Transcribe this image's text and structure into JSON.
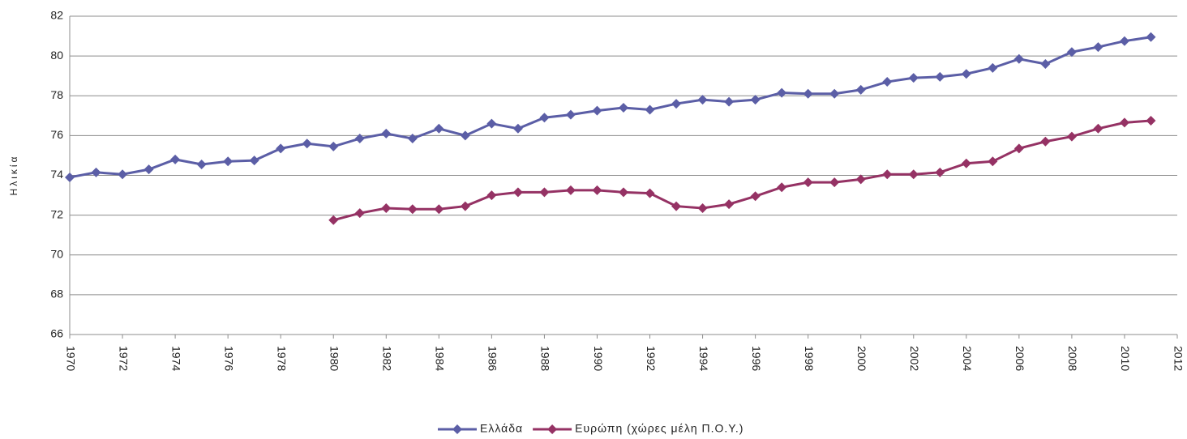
{
  "chart_data": {
    "type": "line",
    "y_label": "Ηλικία",
    "x": [
      1970,
      1971,
      1972,
      1973,
      1974,
      1975,
      1976,
      1977,
      1978,
      1979,
      1980,
      1981,
      1982,
      1983,
      1984,
      1985,
      1986,
      1987,
      1988,
      1989,
      1990,
      1991,
      1992,
      1993,
      1994,
      1995,
      1996,
      1997,
      1998,
      1999,
      2000,
      2001,
      2002,
      2003,
      2004,
      2005,
      2006,
      2007,
      2008,
      2009,
      2010,
      2011
    ],
    "series": [
      {
        "name": "Ελλάδα",
        "color": "#5b5ea6",
        "values": [
          73.9,
          74.15,
          74.05,
          74.3,
          74.8,
          74.55,
          74.7,
          74.75,
          75.35,
          75.6,
          75.45,
          75.85,
          76.1,
          75.85,
          76.35,
          76.0,
          76.6,
          76.35,
          76.9,
          77.05,
          77.25,
          77.4,
          77.3,
          77.6,
          77.8,
          77.7,
          77.8,
          78.15,
          78.1,
          78.1,
          78.3,
          78.7,
          78.9,
          78.95,
          79.1,
          79.4,
          79.85,
          79.6,
          80.2,
          80.45,
          80.75,
          80.95
        ]
      },
      {
        "name": "Ευρώπη (χώρες μέλη Π.Ο.Υ.)",
        "color": "#953264",
        "values": [
          null,
          null,
          null,
          null,
          null,
          null,
          null,
          null,
          null,
          null,
          71.75,
          72.1,
          72.35,
          72.3,
          72.3,
          72.45,
          73.0,
          73.15,
          73.15,
          73.25,
          73.25,
          73.15,
          73.1,
          72.45,
          72.35,
          72.55,
          72.95,
          73.4,
          73.65,
          73.65,
          73.8,
          74.05,
          74.05,
          74.15,
          74.6,
          74.7,
          75.35,
          75.7,
          75.95,
          76.35,
          76.65,
          76.75
        ]
      }
    ],
    "xlim": [
      1970,
      2012
    ],
    "xticks": [
      1970,
      1972,
      1974,
      1976,
      1978,
      1980,
      1982,
      1984,
      1986,
      1988,
      1990,
      1992,
      1994,
      1996,
      1998,
      2000,
      2002,
      2004,
      2006,
      2008,
      2010,
      2012
    ],
    "ylim": [
      66,
      82
    ],
    "yticks": [
      66,
      68,
      70,
      72,
      74,
      76,
      78,
      80,
      82
    ],
    "grid": true,
    "legend": "bottom"
  }
}
